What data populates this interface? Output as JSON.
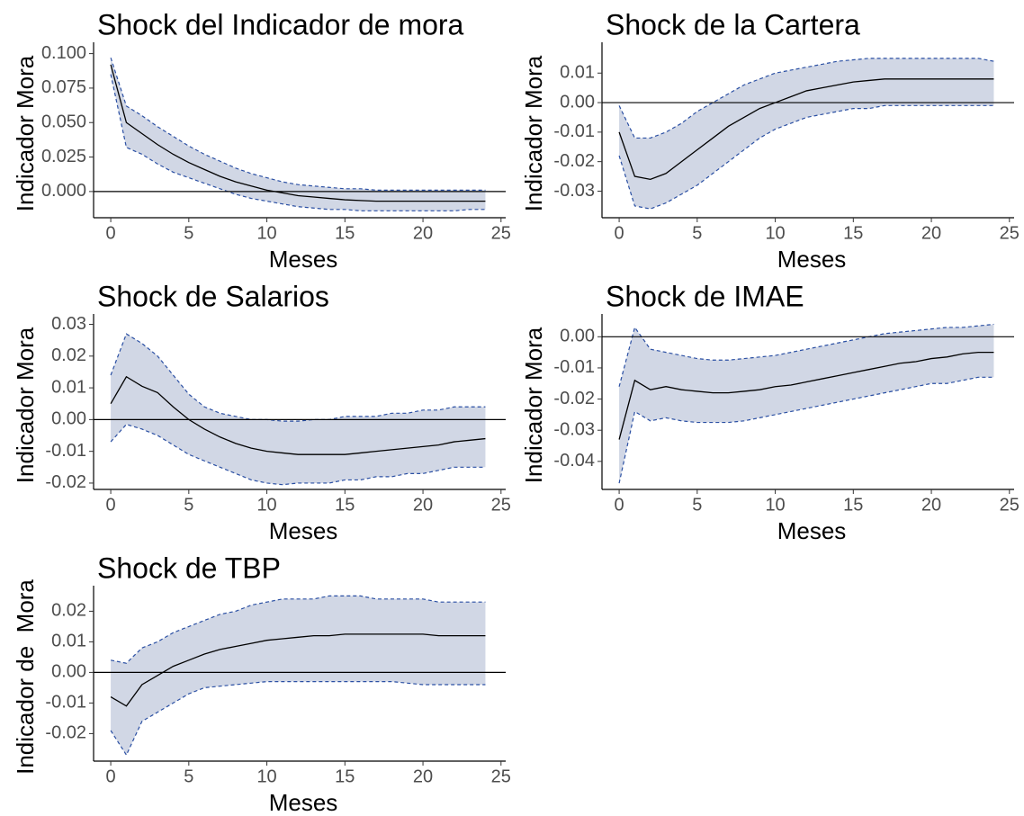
{
  "chart_data": [
    {
      "type": "line",
      "title": "Shock del Indicador de mora",
      "xlabel": "Meses",
      "ylabel": "Indicador Mora",
      "x": [
        0,
        1,
        2,
        3,
        4,
        5,
        6,
        7,
        8,
        9,
        10,
        11,
        12,
        13,
        14,
        15,
        16,
        17,
        18,
        19,
        20,
        21,
        22,
        23,
        24
      ],
      "values": [
        0.092,
        0.05,
        0.042,
        0.034,
        0.027,
        0.021,
        0.016,
        0.011,
        0.007,
        0.004,
        0.001,
        -0.001,
        -0.003,
        -0.004,
        -0.005,
        -0.006,
        -0.0065,
        -0.007,
        -0.007,
        -0.007,
        -0.007,
        -0.007,
        -0.007,
        -0.007,
        -0.007
      ],
      "upper": [
        0.097,
        0.062,
        0.055,
        0.047,
        0.04,
        0.033,
        0.027,
        0.022,
        0.017,
        0.013,
        0.01,
        0.007,
        0.005,
        0.004,
        0.003,
        0.002,
        0.002,
        0.001,
        0.001,
        0.001,
        0.001,
        0.001,
        0.001,
        0.001,
        0.001
      ],
      "lower": [
        0.085,
        0.032,
        0.027,
        0.02,
        0.014,
        0.01,
        0.006,
        0.002,
        -0.002,
        -0.005,
        -0.007,
        -0.009,
        -0.011,
        -0.012,
        -0.013,
        -0.013,
        -0.014,
        -0.014,
        -0.014,
        -0.014,
        -0.014,
        -0.014,
        -0.014,
        -0.013,
        -0.013
      ],
      "color": "#000000",
      "band_color": "#d1d7e5",
      "band_edge_color": "#2a4fa3",
      "hline": 0,
      "xlim": [
        -1.1,
        25.3
      ],
      "xticks": [
        0,
        5,
        10,
        15,
        20,
        25
      ],
      "ylim": [
        -0.019,
        0.103
      ],
      "yticks": [
        {
          "value": 0,
          "label": "0.000"
        },
        0.025,
        {
          "value": 0.05,
          "label": "0.050"
        },
        0.075,
        {
          "value": 0.1,
          "label": "0.100"
        }
      ]
    },
    {
      "type": "line",
      "title": "Shock de la Cartera",
      "xlabel": "Meses",
      "ylabel": "Indicador Mora",
      "x": [
        0,
        1,
        2,
        3,
        4,
        5,
        6,
        7,
        8,
        9,
        10,
        11,
        12,
        13,
        14,
        15,
        16,
        17,
        18,
        19,
        20,
        21,
        22,
        23,
        24
      ],
      "values": [
        -0.01,
        -0.025,
        -0.026,
        -0.024,
        -0.02,
        -0.016,
        -0.012,
        -0.008,
        -0.005,
        -0.002,
        0,
        0.002,
        0.004,
        0.005,
        0.006,
        0.007,
        0.0075,
        0.008,
        0.008,
        0.008,
        0.008,
        0.008,
        0.008,
        0.008,
        0.008
      ],
      "upper": [
        -0.001,
        -0.012,
        -0.012,
        -0.01,
        -0.007,
        -0.003,
        0,
        0.003,
        0.006,
        0.008,
        0.01,
        0.011,
        0.012,
        0.013,
        0.014,
        0.0145,
        0.015,
        0.015,
        0.015,
        0.015,
        0.015,
        0.015,
        0.015,
        0.015,
        0.014
      ],
      "lower": [
        -0.018,
        -0.035,
        -0.036,
        -0.034,
        -0.031,
        -0.028,
        -0.024,
        -0.02,
        -0.016,
        -0.012,
        -0.009,
        -0.007,
        -0.005,
        -0.004,
        -0.003,
        -0.002,
        -0.002,
        -0.001,
        -0.001,
        -0.001,
        -0.001,
        -0.001,
        -0.001,
        -0.001,
        -0.001
      ],
      "color": "#000000",
      "band_color": "#d1d7e5",
      "band_edge_color": "#2a4fa3",
      "hline": 0,
      "xlim": [
        -1.1,
        25.3
      ],
      "xticks": [
        0,
        5,
        10,
        15,
        20,
        25
      ],
      "ylim": [
        -0.039,
        0.018
      ],
      "yticks": [
        -0.03,
        -0.02,
        -0.01,
        {
          "value": 0,
          "label": "0.00"
        },
        0.01
      ]
    },
    {
      "type": "line",
      "title": "Shock de Salarios",
      "xlabel": "Meses",
      "ylabel": "Indicador Mora",
      "x": [
        0,
        1,
        2,
        3,
        4,
        5,
        6,
        7,
        8,
        9,
        10,
        11,
        12,
        13,
        14,
        15,
        16,
        17,
        18,
        19,
        20,
        21,
        22,
        23,
        24
      ],
      "values": [
        0.005,
        0.0135,
        0.0105,
        0.0085,
        0.004,
        0,
        -0.003,
        -0.0055,
        -0.0075,
        -0.009,
        -0.01,
        -0.0105,
        -0.011,
        -0.011,
        -0.011,
        -0.011,
        -0.0105,
        -0.01,
        -0.0095,
        -0.009,
        -0.0085,
        -0.008,
        -0.007,
        -0.0065,
        -0.006
      ],
      "upper": [
        0.014,
        0.027,
        0.024,
        0.02,
        0.014,
        0.008,
        0.004,
        0.002,
        0.001,
        0,
        0,
        -0.0005,
        -0.0005,
        0,
        0,
        0.001,
        0.001,
        0.001,
        0.002,
        0.002,
        0.003,
        0.003,
        0.004,
        0.004,
        0.004
      ],
      "lower": [
        -0.007,
        -0.0015,
        -0.003,
        -0.005,
        -0.008,
        -0.011,
        -0.013,
        -0.015,
        -0.017,
        -0.019,
        -0.02,
        -0.0205,
        -0.02,
        -0.02,
        -0.02,
        -0.019,
        -0.019,
        -0.018,
        -0.018,
        -0.017,
        -0.017,
        -0.016,
        -0.015,
        -0.015,
        -0.015
      ],
      "color": "#000000",
      "band_color": "#d1d7e5",
      "band_edge_color": "#2a4fa3",
      "hline": 0,
      "xlim": [
        -1.1,
        25.3
      ],
      "xticks": [
        0,
        5,
        10,
        15,
        20,
        25
      ],
      "ylim": [
        -0.022,
        0.031
      ],
      "yticks": [
        -0.02,
        -0.01,
        {
          "value": 0,
          "label": "0.00"
        },
        0.01,
        0.02,
        0.03
      ]
    },
    {
      "type": "line",
      "title": "Shock de IMAE",
      "xlabel": "Meses",
      "ylabel": "Indicador Mora",
      "x": [
        0,
        1,
        2,
        3,
        4,
        5,
        6,
        7,
        8,
        9,
        10,
        11,
        12,
        13,
        14,
        15,
        16,
        17,
        18,
        19,
        20,
        21,
        22,
        23,
        24
      ],
      "values": [
        -0.033,
        -0.014,
        -0.017,
        -0.016,
        -0.017,
        -0.0175,
        -0.018,
        -0.018,
        -0.0175,
        -0.017,
        -0.016,
        -0.0155,
        -0.0145,
        -0.0135,
        -0.0125,
        -0.0115,
        -0.0105,
        -0.0095,
        -0.0085,
        -0.008,
        -0.007,
        -0.0065,
        -0.0055,
        -0.005,
        -0.005
      ],
      "upper": [
        -0.016,
        0.003,
        -0.004,
        -0.005,
        -0.006,
        -0.007,
        -0.0075,
        -0.0075,
        -0.007,
        -0.0065,
        -0.006,
        -0.005,
        -0.004,
        -0.003,
        -0.002,
        -0.001,
        0,
        0.001,
        0.0015,
        0.002,
        0.0025,
        0.003,
        0.003,
        0.0035,
        0.004
      ],
      "lower": [
        -0.047,
        -0.024,
        -0.027,
        -0.026,
        -0.027,
        -0.0275,
        -0.0275,
        -0.0275,
        -0.027,
        -0.026,
        -0.025,
        -0.024,
        -0.023,
        -0.022,
        -0.021,
        -0.02,
        -0.019,
        -0.018,
        -0.017,
        -0.016,
        -0.015,
        -0.015,
        -0.014,
        -0.013,
        -0.013
      ],
      "color": "#000000",
      "band_color": "#d1d7e5",
      "band_edge_color": "#2a4fa3",
      "hline": 0,
      "xlim": [
        -1.1,
        25.3
      ],
      "xticks": [
        0,
        5,
        10,
        15,
        20,
        25
      ],
      "ylim": [
        -0.049,
        0.005
      ],
      "yticks": [
        -0.04,
        -0.03,
        -0.02,
        -0.01,
        {
          "value": 0,
          "label": "0.00"
        }
      ]
    },
    {
      "type": "line",
      "title": "Shock de TBP",
      "xlabel": "Meses",
      "ylabel": "Indicador de  Mora",
      "x": [
        0,
        1,
        2,
        3,
        4,
        5,
        6,
        7,
        8,
        9,
        10,
        11,
        12,
        13,
        14,
        15,
        16,
        17,
        18,
        19,
        20,
        21,
        22,
        23,
        24
      ],
      "values": [
        -0.008,
        -0.011,
        -0.004,
        -0.001,
        0.002,
        0.004,
        0.006,
        0.0075,
        0.0085,
        0.0095,
        0.0105,
        0.011,
        0.0115,
        0.012,
        0.012,
        0.0125,
        0.0125,
        0.0125,
        0.0125,
        0.0125,
        0.0125,
        0.012,
        0.012,
        0.012,
        0.012
      ],
      "upper": [
        0.004,
        0.003,
        0.008,
        0.01,
        0.013,
        0.015,
        0.017,
        0.019,
        0.02,
        0.022,
        0.023,
        0.024,
        0.024,
        0.024,
        0.025,
        0.025,
        0.025,
        0.024,
        0.024,
        0.024,
        0.024,
        0.023,
        0.023,
        0.023,
        0.023
      ],
      "lower": [
        -0.019,
        -0.027,
        -0.016,
        -0.013,
        -0.01,
        -0.007,
        -0.005,
        -0.0045,
        -0.004,
        -0.0035,
        -0.003,
        -0.003,
        -0.003,
        -0.003,
        -0.003,
        -0.003,
        -0.003,
        -0.003,
        -0.003,
        -0.0035,
        -0.004,
        -0.004,
        -0.004,
        -0.004,
        -0.004
      ],
      "color": "#000000",
      "band_color": "#d1d7e5",
      "band_edge_color": "#2a4fa3",
      "hline": 0,
      "xlim": [
        -1.1,
        25.3
      ],
      "xticks": [
        0,
        5,
        10,
        15,
        20,
        25
      ],
      "ylim": [
        -0.029,
        0.026
      ],
      "yticks": [
        -0.02,
        -0.01,
        {
          "value": 0,
          "label": "0.00"
        },
        0.01,
        0.02
      ]
    }
  ]
}
